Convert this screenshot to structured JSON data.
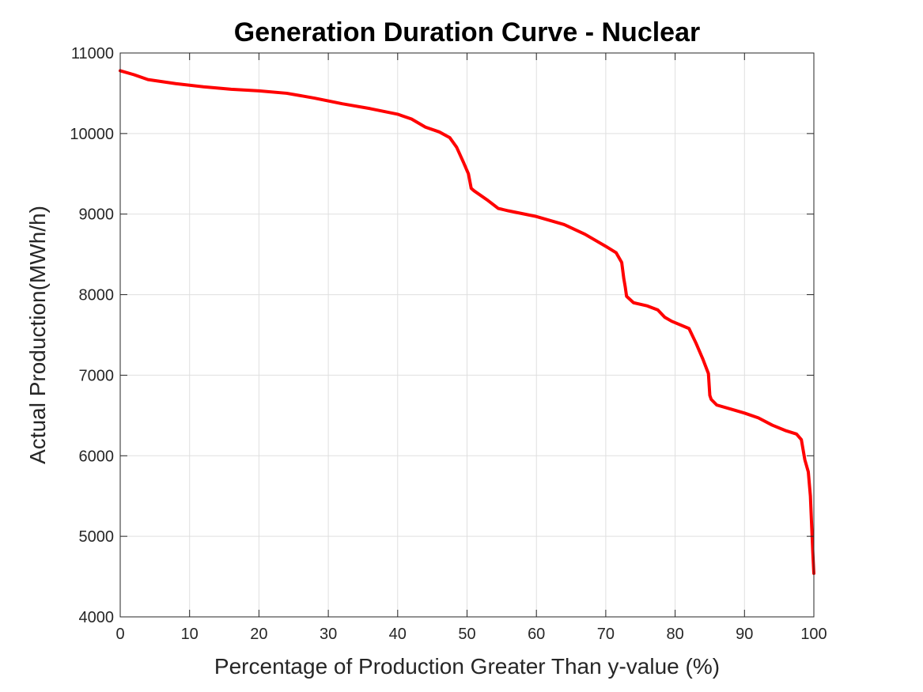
{
  "chart_data": {
    "type": "line",
    "title": "Generation Duration Curve - Nuclear",
    "xlabel": "Percentage of Production Greater Than y-value (%)",
    "ylabel": "Actual Production(MWh/h)",
    "xlim": [
      0,
      100
    ],
    "ylim": [
      4000,
      11000
    ],
    "xticks": [
      0,
      10,
      20,
      30,
      40,
      50,
      60,
      70,
      80,
      90,
      100
    ],
    "yticks": [
      4000,
      5000,
      6000,
      7000,
      8000,
      9000,
      10000,
      11000
    ],
    "grid": true,
    "legend": "none",
    "series": [
      {
        "color": "#ff0000",
        "x": [
          0,
          2,
          4,
          8,
          12,
          16,
          20,
          24,
          28,
          32,
          36,
          40,
          42,
          44,
          46,
          47.5,
          48.5,
          49.5,
          50.2,
          50.6,
          51,
          53,
          54.5,
          56,
          60,
          64,
          67,
          70,
          71.5,
          72.3,
          72.6,
          72.8,
          73,
          74,
          76,
          77.5,
          78.5,
          79.5,
          82,
          83,
          84,
          84.8,
          85,
          85.2,
          86,
          88,
          90,
          92,
          94,
          96,
          97.5,
          98.2,
          98.7,
          99.2,
          99.5,
          99.7,
          99.85,
          100
        ],
        "y": [
          10780,
          10730,
          10670,
          10620,
          10580,
          10550,
          10530,
          10500,
          10440,
          10370,
          10310,
          10240,
          10180,
          10080,
          10020,
          9950,
          9830,
          9640,
          9500,
          9320,
          9290,
          9170,
          9070,
          9040,
          8970,
          8870,
          8750,
          8600,
          8520,
          8400,
          8200,
          8100,
          7980,
          7900,
          7860,
          7810,
          7720,
          7670,
          7580,
          7400,
          7200,
          7020,
          6750,
          6700,
          6630,
          6580,
          6530,
          6470,
          6380,
          6310,
          6270,
          6200,
          5950,
          5800,
          5500,
          5100,
          4800,
          4540
        ]
      }
    ]
  }
}
